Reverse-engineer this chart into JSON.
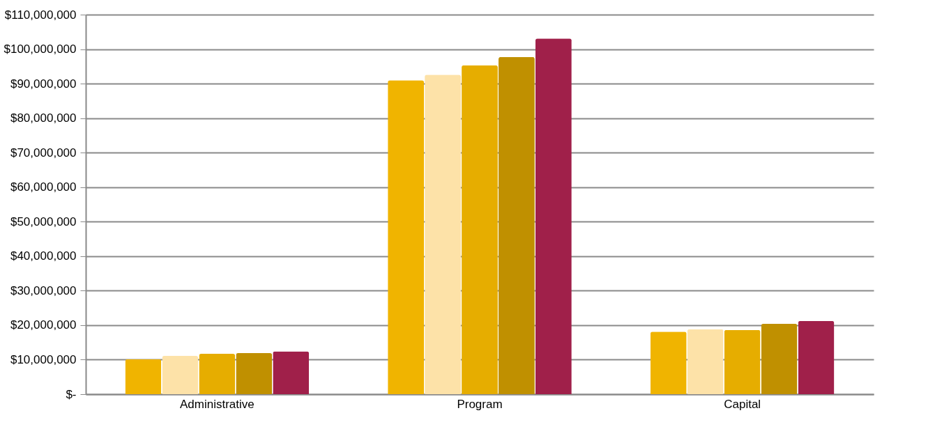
{
  "chart_data": {
    "type": "bar",
    "categories": [
      "Administrative",
      "Program",
      "Capital"
    ],
    "series": [
      {
        "color": "#f0b400",
        "values": [
          10100000,
          91000000,
          18100000
        ]
      },
      {
        "color": "#fde2a8",
        "values": [
          11100000,
          92600000,
          18800000
        ]
      },
      {
        "color": "#e6ad00",
        "values": [
          11700000,
          95300000,
          18600000
        ]
      },
      {
        "color": "#c09000",
        "values": [
          11900000,
          97700000,
          20400000
        ]
      },
      {
        "color": "#a0204a",
        "values": [
          12400000,
          103100000,
          21200000
        ]
      }
    ],
    "ylim": [
      0,
      110000000
    ],
    "yticks": [
      {
        "value": 0,
        "label": "$-"
      },
      {
        "value": 10000000,
        "label": "$10,000,000"
      },
      {
        "value": 20000000,
        "label": "$20,000,000"
      },
      {
        "value": 30000000,
        "label": "$30,000,000"
      },
      {
        "value": 40000000,
        "label": "$40,000,000"
      },
      {
        "value": 50000000,
        "label": "$50,000,000"
      },
      {
        "value": 60000000,
        "label": "$60,000,000"
      },
      {
        "value": 70000000,
        "label": "$70,000,000"
      },
      {
        "value": 80000000,
        "label": "$80,000,000"
      },
      {
        "value": 90000000,
        "label": "$90,000,000"
      },
      {
        "value": 100000000,
        "label": "$100,000,000"
      },
      {
        "value": 110000000,
        "label": "$110,000,000"
      }
    ],
    "grid": "y"
  }
}
